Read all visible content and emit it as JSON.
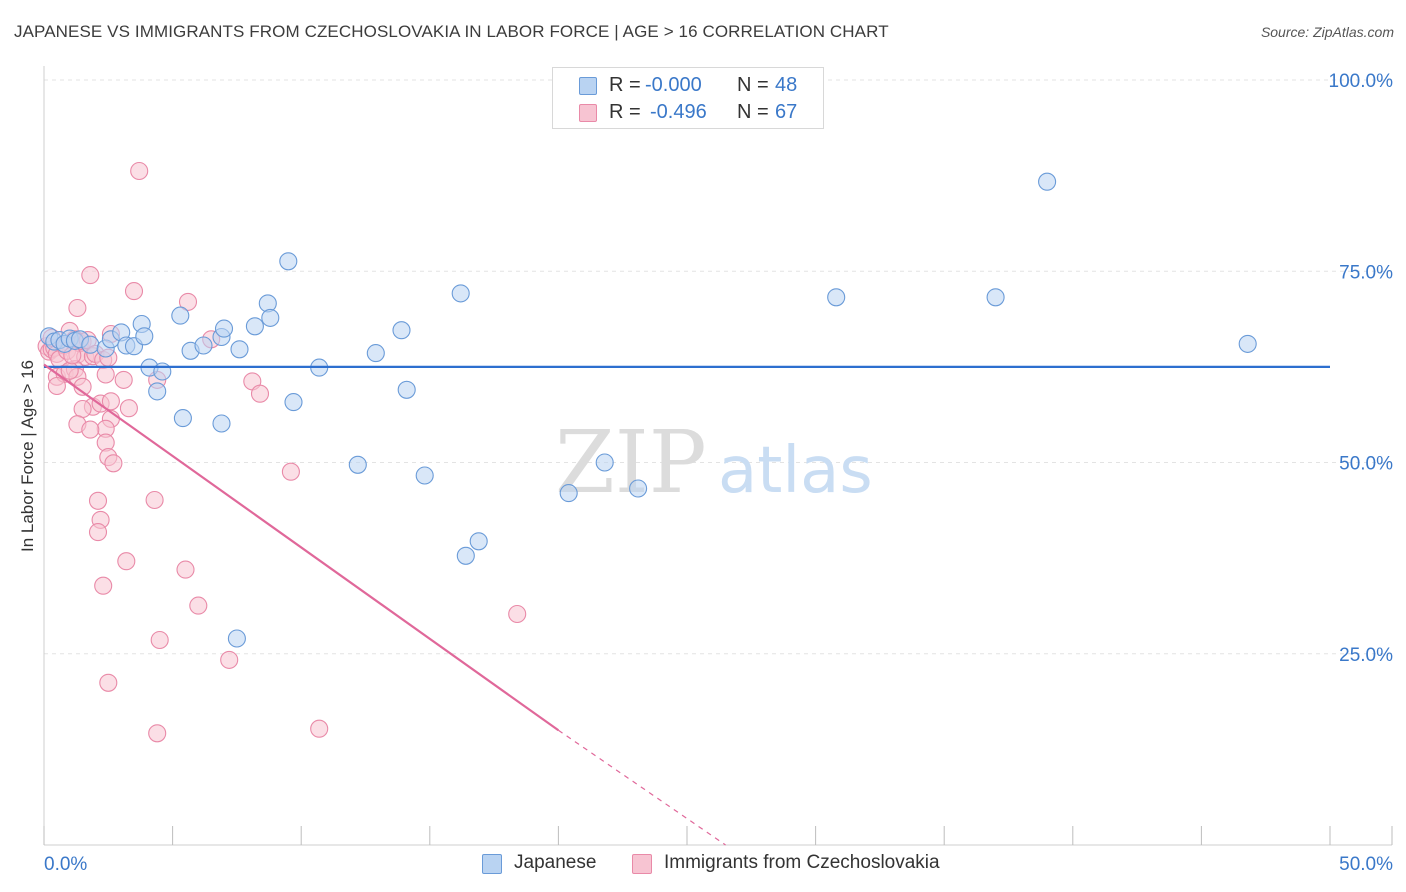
{
  "title": "JAPANESE VS IMMIGRANTS FROM CZECHOSLOVAKIA IN LABOR FORCE | AGE > 16 CORRELATION CHART",
  "source": "Source: ZipAtlas.com",
  "legend": {
    "rows": [
      {
        "series": "Japanese",
        "r_label": "R =",
        "r_value": "-0.000",
        "n_label": "N =",
        "n_value": "48",
        "fill": "#b9d3f2",
        "stroke": "#6a9bd8"
      },
      {
        "series": "Immigrants from Czechoslovakia",
        "r_label": "R =",
        "r_value": "-0.496",
        "n_label": "N =",
        "n_value": "67",
        "fill": "#f7c4d2",
        "stroke": "#e98aa8"
      }
    ]
  },
  "bottom_legend": [
    "Japanese",
    "Immigrants from Czechoslovakia"
  ],
  "watermark": {
    "zip": "ZIP",
    "atlas": "atlas"
  },
  "chart_data": {
    "type": "scatter",
    "title": "JAPANESE VS IMMIGRANTS FROM CZECHOSLOVAKIA IN LABOR FORCE | AGE > 16 CORRELATION CHART",
    "xlabel": "",
    "ylabel": "In Labor Force | Age > 16",
    "xlim": [
      0,
      50
    ],
    "ylim": [
      0,
      100
    ],
    "x_tick_labels": [
      "0.0%",
      "50.0%"
    ],
    "y_tick_values": [
      25,
      50,
      75,
      100
    ],
    "y_tick_labels": [
      "25.0%",
      "50.0%",
      "75.0%",
      "100.0%"
    ],
    "grid": true,
    "series": [
      {
        "name": "Japanese",
        "color": "#6a9bd8",
        "fill": "#b9d3f2",
        "trend": {
          "x": [
            0,
            50
          ],
          "y": [
            62.5,
            62.5
          ],
          "color": "#2d6fcf"
        },
        "points": [
          [
            0.2,
            66.5
          ],
          [
            0.4,
            65.8
          ],
          [
            0.6,
            66.0
          ],
          [
            0.8,
            65.5
          ],
          [
            1.0,
            66.2
          ],
          [
            1.2,
            65.9
          ],
          [
            1.4,
            66.1
          ],
          [
            1.8,
            65.4
          ],
          [
            2.4,
            64.9
          ],
          [
            2.6,
            66.1
          ],
          [
            3.0,
            67.0
          ],
          [
            3.2,
            65.3
          ],
          [
            3.8,
            68.1
          ],
          [
            3.5,
            65.2
          ],
          [
            3.9,
            66.5
          ],
          [
            4.1,
            62.4
          ],
          [
            4.6,
            61.9
          ],
          [
            4.4,
            59.3
          ],
          [
            5.3,
            69.2
          ],
          [
            5.4,
            55.8
          ],
          [
            5.7,
            64.6
          ],
          [
            6.2,
            65.3
          ],
          [
            6.9,
            66.4
          ],
          [
            6.9,
            55.1
          ],
          [
            7.0,
            67.5
          ],
          [
            7.6,
            64.8
          ],
          [
            8.2,
            67.8
          ],
          [
            8.7,
            70.8
          ],
          [
            8.8,
            68.9
          ],
          [
            9.5,
            76.3
          ],
          [
            9.7,
            57.9
          ],
          [
            10.7,
            62.4
          ],
          [
            12.2,
            49.7
          ],
          [
            12.9,
            64.3
          ],
          [
            13.9,
            67.3
          ],
          [
            14.1,
            59.5
          ],
          [
            14.8,
            48.3
          ],
          [
            16.2,
            72.1
          ],
          [
            16.4,
            37.8
          ],
          [
            16.9,
            39.7
          ],
          [
            20.4,
            46.0
          ],
          [
            21.8,
            50.0
          ],
          [
            23.1,
            46.6
          ],
          [
            30.8,
            71.6
          ],
          [
            37.0,
            71.6
          ],
          [
            39.0,
            86.7
          ],
          [
            46.8,
            65.5
          ],
          [
            7.5,
            27.0
          ]
        ]
      },
      {
        "name": "Immigrants from Czechoslovakia",
        "color": "#e98aa8",
        "fill": "#f7c4d2",
        "trend": {
          "x": [
            0,
            20
          ],
          "y": [
            62.8,
            15.0
          ],
          "dash_x": [
            20,
            26.5
          ],
          "dash_y": [
            15.0,
            0.0
          ],
          "color": "#e0689a"
        },
        "points": [
          [
            0.1,
            65.2
          ],
          [
            0.2,
            64.5
          ],
          [
            0.3,
            64.8
          ],
          [
            0.4,
            65.0
          ],
          [
            0.5,
            64.2
          ],
          [
            0.6,
            63.5
          ],
          [
            0.8,
            65.3
          ],
          [
            0.9,
            64.6
          ],
          [
            1.0,
            67.2
          ],
          [
            1.2,
            66.1
          ],
          [
            1.3,
            64.1
          ],
          [
            1.4,
            65.6
          ],
          [
            1.5,
            65.8
          ],
          [
            1.6,
            63.8
          ],
          [
            1.7,
            66.0
          ],
          [
            1.9,
            63.9
          ],
          [
            2.0,
            64.2
          ],
          [
            2.3,
            63.4
          ],
          [
            0.5,
            61.2
          ],
          [
            0.8,
            61.6
          ],
          [
            1.2,
            62.2
          ],
          [
            1.3,
            61.2
          ],
          [
            0.5,
            60.0
          ],
          [
            1.5,
            59.9
          ],
          [
            1.9,
            57.3
          ],
          [
            2.2,
            57.7
          ],
          [
            1.5,
            57.0
          ],
          [
            2.6,
            55.7
          ],
          [
            2.4,
            54.4
          ],
          [
            1.3,
            55.0
          ],
          [
            1.8,
            54.3
          ],
          [
            2.4,
            52.6
          ],
          [
            2.5,
            50.7
          ],
          [
            2.7,
            49.9
          ],
          [
            2.1,
            45.0
          ],
          [
            2.2,
            42.5
          ],
          [
            2.1,
            40.9
          ],
          [
            3.2,
            37.1
          ],
          [
            2.3,
            33.9
          ],
          [
            2.5,
            21.2
          ],
          [
            1.3,
            70.2
          ],
          [
            1.8,
            74.5
          ],
          [
            3.5,
            72.4
          ],
          [
            5.6,
            71.0
          ],
          [
            4.3,
            45.1
          ],
          [
            5.5,
            36.0
          ],
          [
            6.0,
            31.3
          ],
          [
            4.5,
            26.8
          ],
          [
            7.2,
            24.2
          ],
          [
            4.4,
            14.6
          ],
          [
            8.1,
            60.6
          ],
          [
            8.4,
            59.0
          ],
          [
            9.6,
            48.8
          ],
          [
            10.7,
            15.2
          ],
          [
            18.4,
            30.2
          ],
          [
            3.7,
            88.1
          ],
          [
            3.1,
            60.8
          ],
          [
            3.3,
            57.1
          ],
          [
            2.6,
            66.8
          ],
          [
            1.0,
            62.0
          ],
          [
            4.4,
            60.8
          ],
          [
            6.5,
            66.1
          ],
          [
            2.4,
            61.5
          ],
          [
            0.3,
            66.3
          ],
          [
            2.6,
            58.0
          ],
          [
            1.1,
            64.0
          ],
          [
            2.5,
            63.7
          ]
        ]
      }
    ]
  }
}
